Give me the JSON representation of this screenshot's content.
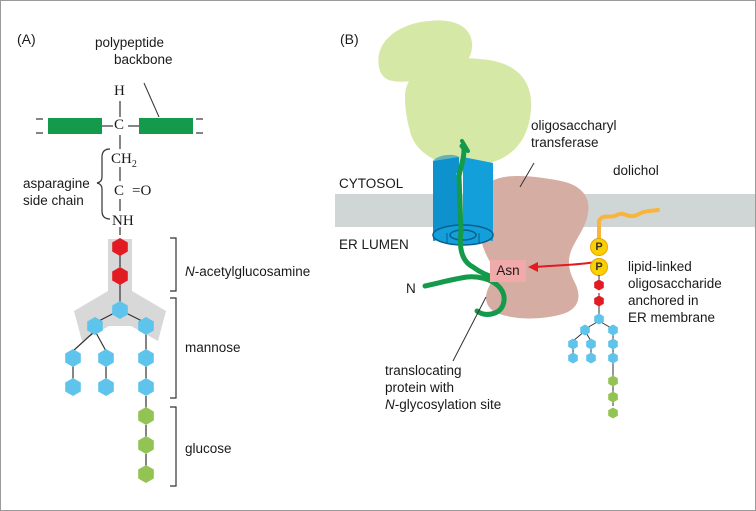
{
  "panel_a": {
    "letter": "(A)",
    "backbone_label": [
      "polypeptide",
      "backbone"
    ],
    "atom_h": "H",
    "atom_c1": "C",
    "atom_ch": "CH",
    "atom_ch_sub": "2",
    "atom_c2": "C",
    "atom_eq": "=O",
    "atom_nh": "NH",
    "side_chain_label": [
      "asparagine",
      "side chain"
    ],
    "nacetyl_prefix": "N",
    "nacetyl_rest": "-acetylglucosamine",
    "mannose": "mannose",
    "glucose": "glucose"
  },
  "panel_b": {
    "letter": "(B)",
    "transferase_label": [
      "oligosaccharyl",
      "transferase"
    ],
    "cytosol": "CYTOSOL",
    "er_lumen": "ER LUMEN",
    "dolichol": "dolichol",
    "n_terminus": "N",
    "asn": "Asn",
    "phosphate": "P",
    "lipid_label": [
      "lipid-linked",
      "oligosaccharide",
      "anchored in",
      "ER membrane"
    ],
    "protein_label_line1": "translocating",
    "protein_label_line2": "protein with",
    "protein_label_line3_prefix": "N",
    "protein_label_line3_rest": "-glycosylation site"
  },
  "colors": {
    "green_backbone": "#139a4a",
    "red_sugar": "#e21b23",
    "blue_sugar": "#5ec4ec",
    "lime_sugar": "#93c353",
    "membrane": "#d0d6d5",
    "translocon": "#139fd9",
    "ribosome": "#d6e8a6",
    "transferase": "#d6ada3",
    "dolichol": "#f7b53b"
  }
}
